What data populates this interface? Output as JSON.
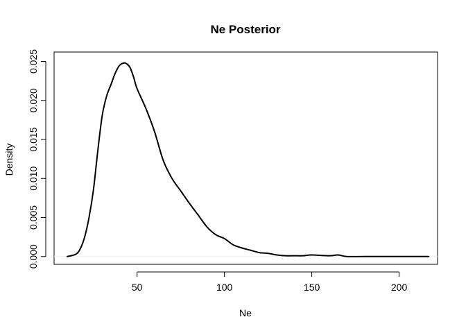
{
  "chart_data": {
    "type": "line",
    "title": "Ne Posterior",
    "xlabel": "Ne",
    "ylabel": "Density",
    "xlim": [
      2.5,
      222
    ],
    "ylim": [
      -0.001,
      0.0262
    ],
    "x_ticks": [
      50,
      100,
      150,
      200
    ],
    "x_tick_labels": [
      "50",
      "100",
      "150",
      "200"
    ],
    "y_ticks": [
      0.0,
      0.005,
      0.01,
      0.015,
      0.02,
      0.025
    ],
    "y_tick_labels": [
      "0.000",
      "0.005",
      "0.010",
      "0.015",
      "0.020",
      "0.025"
    ],
    "grid": false,
    "legend": "none",
    "series": [
      {
        "color": "#000000",
        "x": [
          10,
          15,
          17.5,
          20,
          22.5,
          25,
          27.5,
          30,
          32.5,
          35,
          37.5,
          40,
          42.5,
          44,
          46,
          48,
          50,
          55,
          60,
          65,
          70,
          75,
          80,
          85,
          90,
          95,
          100,
          105,
          110,
          115,
          120,
          125,
          130,
          135,
          140,
          145,
          150,
          160,
          165,
          170,
          180,
          190,
          200,
          210,
          217
        ],
        "y": [
          0.0,
          0.0003,
          0.001,
          0.0025,
          0.005,
          0.0085,
          0.0135,
          0.018,
          0.0205,
          0.022,
          0.0235,
          0.0245,
          0.0248,
          0.0247,
          0.0242,
          0.023,
          0.0215,
          0.019,
          0.016,
          0.0123,
          0.01,
          0.0084,
          0.0068,
          0.0053,
          0.0038,
          0.0028,
          0.0023,
          0.0015,
          0.0011,
          0.0008,
          0.0005,
          0.0004,
          0.0002,
          0.0001,
          0.0001,
          0.0001,
          0.0002,
          0.0001,
          0.0002,
          0.0,
          0.0,
          0.0,
          0.0,
          0.0,
          0.0
        ]
      }
    ]
  }
}
